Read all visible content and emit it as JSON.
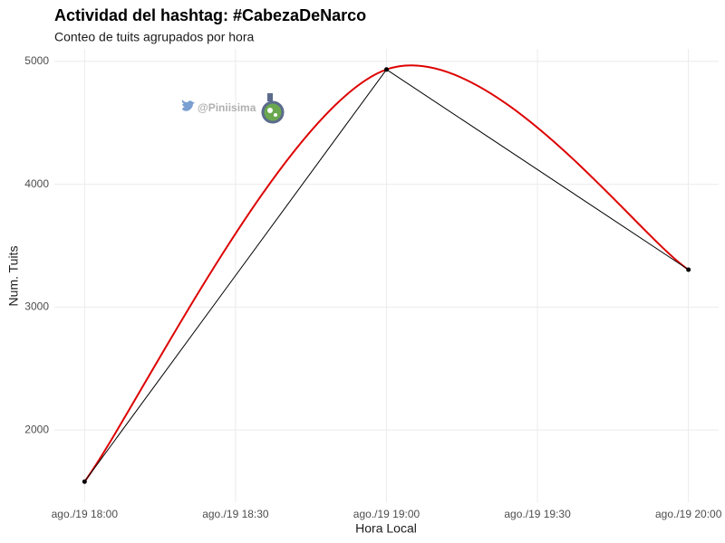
{
  "chart_data": {
    "type": "line",
    "title": "Actividad del hashtag: #CabezaDeNarco",
    "subtitle": "Conteo de tuits agrupados por hora",
    "xlabel": "Hora Local",
    "ylabel": "Num. Tuits",
    "watermark": "@Piniisima",
    "x": [
      18,
      19,
      20
    ],
    "series": [
      {
        "color": "#000000",
        "values": [
          1580,
          4934,
          3305
        ],
        "smooth": true,
        "smooth_color": "#dd0000"
      }
    ],
    "xlim": [
      17.9,
      20.1
    ],
    "xticks": [
      {
        "value": 18,
        "label": "ago./19 18:00"
      },
      {
        "value": 18.5,
        "label": "ago./19 18:30"
      },
      {
        "value": 19,
        "label": "ago./19 19:00"
      },
      {
        "value": 19.5,
        "label": "ago./19 19:30"
      },
      {
        "value": 20,
        "label": "ago./19 20:00"
      }
    ],
    "ylim": [
      1412,
      5102
    ],
    "yticks": [
      2000,
      3000,
      4000,
      5000
    ],
    "grid": true
  }
}
